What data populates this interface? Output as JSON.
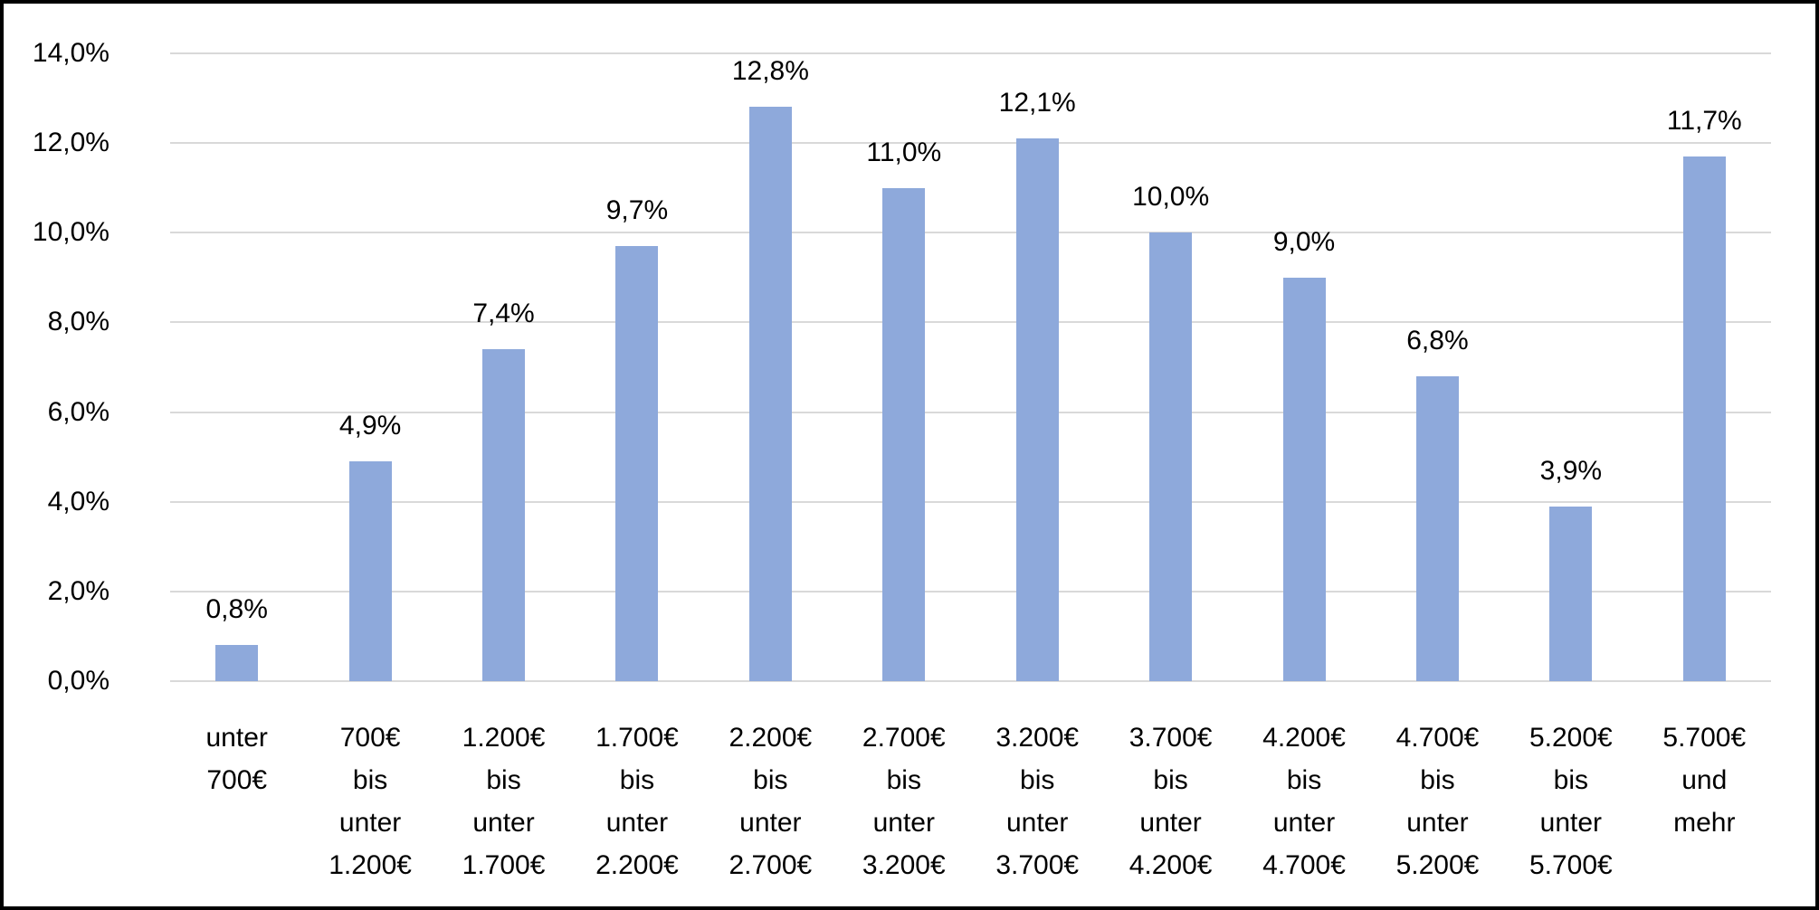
{
  "chart_data": {
    "type": "bar",
    "title": "",
    "xlabel": "",
    "ylabel": "",
    "grid": true,
    "legend": "none",
    "categories": [
      [
        "unter",
        "700€"
      ],
      [
        "700€",
        "bis",
        "unter",
        "1.200€"
      ],
      [
        "1.200€",
        "bis",
        "unter",
        "1.700€"
      ],
      [
        "1.700€",
        "bis",
        "unter",
        "2.200€"
      ],
      [
        "2.200€",
        "bis",
        "unter",
        "2.700€"
      ],
      [
        "2.700€",
        "bis",
        "unter",
        "3.200€"
      ],
      [
        "3.200€",
        "bis",
        "unter",
        "3.700€"
      ],
      [
        "3.700€",
        "bis",
        "unter",
        "4.200€"
      ],
      [
        "4.200€",
        "bis",
        "unter",
        "4.700€"
      ],
      [
        "4.700€",
        "bis",
        "unter",
        "5.200€"
      ],
      [
        "5.200€",
        "bis",
        "unter",
        "5.700€"
      ],
      [
        "5.700€",
        "und",
        "mehr"
      ]
    ],
    "values": [
      0.8,
      4.9,
      7.4,
      9.7,
      12.8,
      11.0,
      12.1,
      10.0,
      9.0,
      6.8,
      3.9,
      11.7
    ],
    "value_labels": [
      "0,8%",
      "4,9%",
      "7,4%",
      "9,7%",
      "12,8%",
      "11,0%",
      "12,1%",
      "10,0%",
      "9,0%",
      "6,8%",
      "3,9%",
      "11,7%"
    ],
    "y_axis": {
      "min": 0,
      "max": 14,
      "tick_values": [
        0,
        2,
        4,
        6,
        8,
        10,
        12,
        14
      ],
      "tick_labels": [
        "0,0%",
        "2,0%",
        "4,0%",
        "6,0%",
        "8,0%",
        "10,0%",
        "12,0%",
        "14,0%"
      ]
    },
    "colors": {
      "bar_fill": "#8EA9DB",
      "gridline": "#D9D9D9",
      "axis_line": "#D9D9D9",
      "text": "#000000",
      "background": "#FFFFFF",
      "frame_border": "#000000"
    }
  }
}
